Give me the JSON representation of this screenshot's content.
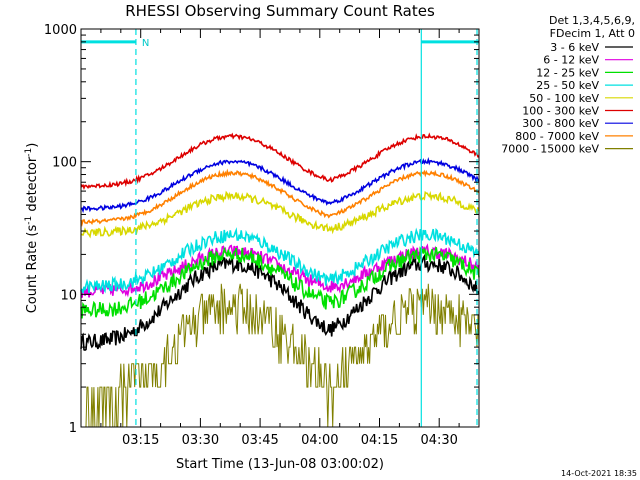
{
  "chart_data": {
    "type": "line",
    "title": "RHESSI Observing Summary Count Rates",
    "xlabel": "Start Time (13-Jun-08 03:00:02)",
    "ylabel_main": "Count Rate (s",
    "ylabel_sup1": "-1",
    "ylabel_mid": " detector",
    "ylabel_sup2": "-1",
    "ylabel_end": ")",
    "x_unit": "minutes after 03:00:02",
    "xlim": [
      0,
      100
    ],
    "ylim": [
      1,
      1000
    ],
    "y_scale": "log",
    "x_ticks": [
      {
        "value": 15,
        "label": "03:15"
      },
      {
        "value": 30,
        "label": "03:30"
      },
      {
        "value": 45,
        "label": "03:45"
      },
      {
        "value": 60,
        "label": "04:00"
      },
      {
        "value": 75,
        "label": "04:15"
      },
      {
        "value": 90,
        "label": "04:30"
      }
    ],
    "y_ticks": [
      {
        "value": 1,
        "label": "1"
      },
      {
        "value": 10,
        "label": "10"
      },
      {
        "value": 100,
        "label": "100"
      },
      {
        "value": 1000,
        "label": "1000"
      }
    ],
    "legend_header": [
      "Det 1,3,4,5,6,9,",
      "FDecim 1, Att 0"
    ],
    "legend_position": "right",
    "series": [
      {
        "name": "3 - 6 keV",
        "color": "#000000",
        "base": 4.3,
        "peak": 17,
        "noise": 0.06
      },
      {
        "name": "6 - 12 keV",
        "color": "#e000e0",
        "base": 10.5,
        "peak": 21,
        "noise": 0.05
      },
      {
        "name": "12 - 25 keV",
        "color": "#00e000",
        "base": 7.5,
        "peak": 20,
        "noise": 0.06
      },
      {
        "name": "25 - 50 keV",
        "color": "#00e0e0",
        "base": 11.3,
        "peak": 28,
        "noise": 0.05
      },
      {
        "name": "50 - 100 keV",
        "color": "#d8d800",
        "base": 29,
        "peak": 55,
        "noise": 0.03
      },
      {
        "name": "100 - 300 keV",
        "color": "#dd0000",
        "base": 65,
        "peak": 155,
        "noise": 0.015
      },
      {
        "name": "300 - 800 keV",
        "color": "#0000e0",
        "base": 44,
        "peak": 100,
        "noise": 0.015
      },
      {
        "name": "800 - 7000 keV",
        "color": "#ff8000",
        "base": 35,
        "peak": 82,
        "noise": 0.015
      },
      {
        "name": "7000 - 15000 keV",
        "color": "#808000",
        "base": 1.5,
        "peak": 8,
        "noise": 0.18
      }
    ],
    "peak_centers": [
      38,
      87
    ],
    "peak_width": 11,
    "solid_line_marker": {
      "x": 85.5,
      "color": "#00e0e0"
    },
    "dashed_line_markers": [
      {
        "x": 13.8,
        "color": "#00e0e0"
      },
      {
        "x": 99.5,
        "color": "#00e0e0"
      }
    ],
    "top_bars": [
      {
        "x_start": 0,
        "x_end": 13.8,
        "y": 800,
        "color": "#00e0e0"
      },
      {
        "x_start": 85.5,
        "x_end": 100,
        "y": 800,
        "color": "#00e0e0"
      }
    ],
    "top_bar_label": "N"
  },
  "footer": {
    "timestamp": "14-Oct-2021 18:35"
  }
}
